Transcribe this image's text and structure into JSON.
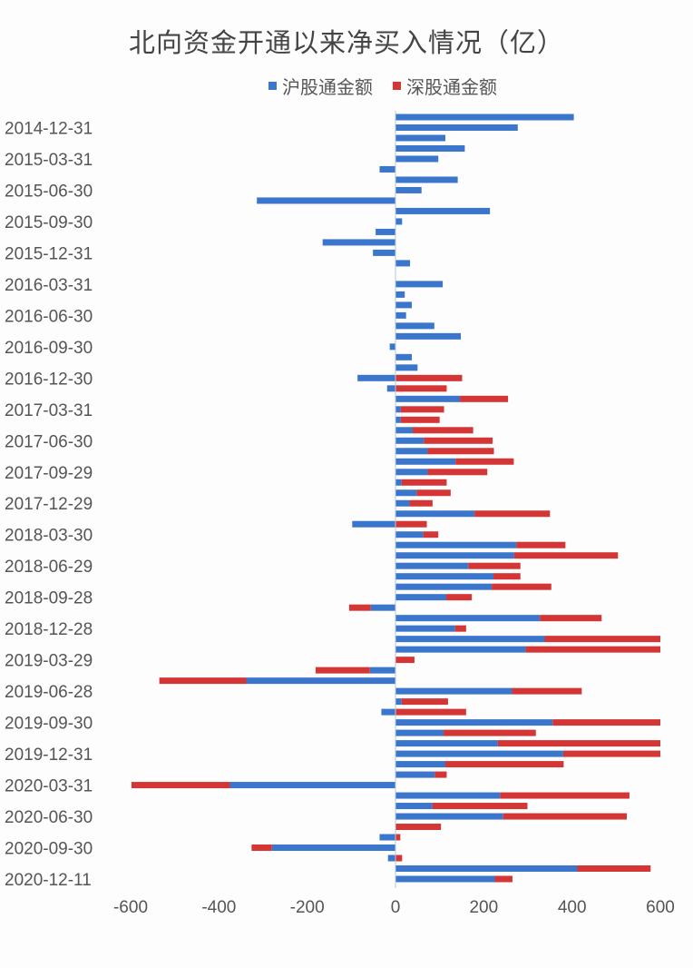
{
  "chart_data": {
    "type": "bar",
    "orientation": "horizontal-stacked",
    "title": "北向资金开通以来净买入情况（亿）",
    "colors": {
      "沪股通金额": "#3a76cc",
      "深股通金额": "#d43535"
    },
    "legend_position": "top",
    "xlim": [
      -600,
      600
    ],
    "xticks": [
      "-600",
      "-400",
      "-200",
      "0",
      "200",
      "400",
      "600"
    ],
    "xtick_values": [
      -600,
      -400,
      -200,
      0,
      200,
      400,
      600
    ],
    "categories": [
      "",
      "2014-12-31",
      "",
      "",
      "2015-03-31",
      "",
      "",
      "2015-06-30",
      "",
      "",
      "2015-09-30",
      "",
      "",
      "2015-12-31",
      "",
      "",
      "2016-03-31",
      "",
      "",
      "2016-06-30",
      "",
      "",
      "2016-09-30",
      "",
      "",
      "2016-12-30",
      "",
      "",
      "2017-03-31",
      "",
      "",
      "2017-06-30",
      "",
      "",
      "2017-09-29",
      "",
      "",
      "2017-12-29",
      "",
      "",
      "2018-03-30",
      "",
      "",
      "2018-06-29",
      "",
      "",
      "2018-09-28",
      "",
      "",
      "2018-12-28",
      "",
      "",
      "2019-03-29",
      "",
      "",
      "2019-06-28",
      "",
      "",
      "2019-09-30",
      "",
      "",
      "2019-12-31",
      "",
      "",
      "2020-03-31",
      "",
      "",
      "2020-06-30",
      "",
      "",
      "2020-09-30",
      "",
      "",
      "2020-12-11"
    ],
    "series": [
      {
        "name": "沪股通金额",
        "values": [
          404,
          277,
          113,
          157,
          97,
          -36,
          141,
          59,
          -314,
          214,
          15,
          -45,
          -165,
          -51,
          33,
          0,
          107,
          21,
          37,
          24,
          88,
          148,
          -13,
          37,
          50,
          -86,
          -19,
          146,
          12,
          12,
          39,
          64,
          73,
          136,
          73,
          14,
          48,
          32,
          179,
          -98,
          63,
          274,
          269,
          165,
          222,
          218,
          115,
          -56,
          327,
          135,
          338,
          295,
          0,
          -58,
          -338,
          264,
          14,
          -32,
          356,
          109,
          232,
          380,
          113,
          89,
          -375,
          237,
          84,
          244,
          0,
          -36,
          -280,
          -17,
          412,
          225
        ]
      },
      {
        "name": "深股通金额",
        "values": [
          0,
          0,
          0,
          0,
          0,
          0,
          0,
          0,
          0,
          0,
          0,
          0,
          0,
          0,
          0,
          0,
          0,
          0,
          0,
          0,
          0,
          0,
          0,
          0,
          0,
          151,
          116,
          109,
          98,
          88,
          137,
          156,
          150,
          132,
          135,
          102,
          77,
          52,
          171,
          71,
          34,
          111,
          235,
          118,
          61,
          135,
          58,
          -49,
          140,
          25,
          262,
          305,
          43,
          -123,
          -197,
          158,
          105,
          160,
          244,
          209,
          368,
          220,
          268,
          27,
          -223,
          293,
          215,
          280,
          103,
          11,
          -46,
          15,
          166,
          40
        ]
      }
    ]
  }
}
